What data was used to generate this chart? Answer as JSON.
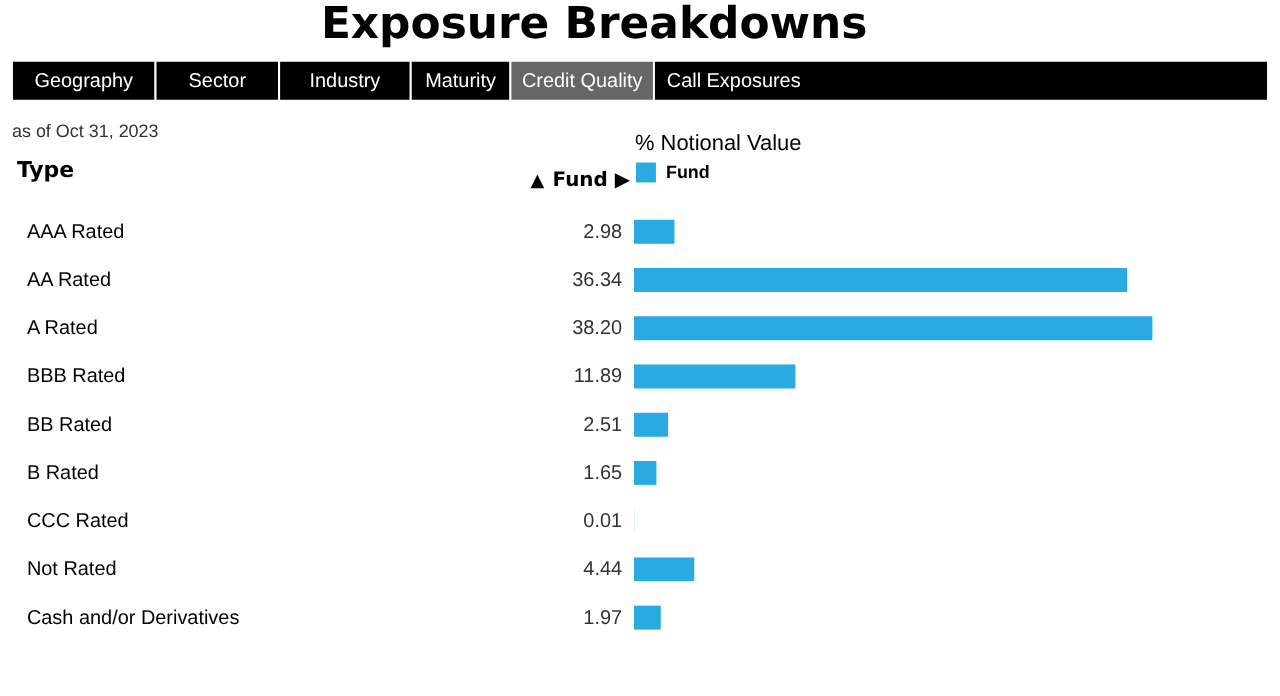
{
  "chart_data": {
    "type": "bar",
    "orientation": "horizontal",
    "title": "Exposure Breakdowns",
    "subtitle": "as of Oct 31, 2023",
    "xlabel": "% Notional Value",
    "ylabel": "Type",
    "annotations": [
      "Geography",
      "Sector",
      "Industry",
      "Maturity",
      "Credit Quality",
      "Call Exposures",
      "▲",
      "Fund ▶"
    ],
    "categories": [
      "AAA Rated",
      "AA Rated",
      "A Rated",
      "BBB Rated",
      "BB Rated",
      "B Rated",
      "CCC Rated",
      "Not Rated",
      "Cash and/or Derivatives"
    ],
    "series": [
      {
        "name": "Fund",
        "color": "#29abe2",
        "values": [
          2.98,
          36.34,
          38.2,
          11.89,
          2.51,
          1.65,
          0.01,
          4.44,
          1.97
        ],
        "value_labels": [
          "2.98",
          "36.34",
          "38.20",
          "11.89",
          "2.51",
          "1.65",
          "0.01",
          "4.44",
          "1.97"
        ]
      }
    ],
    "legend": "top left",
    "grid": false
  }
}
